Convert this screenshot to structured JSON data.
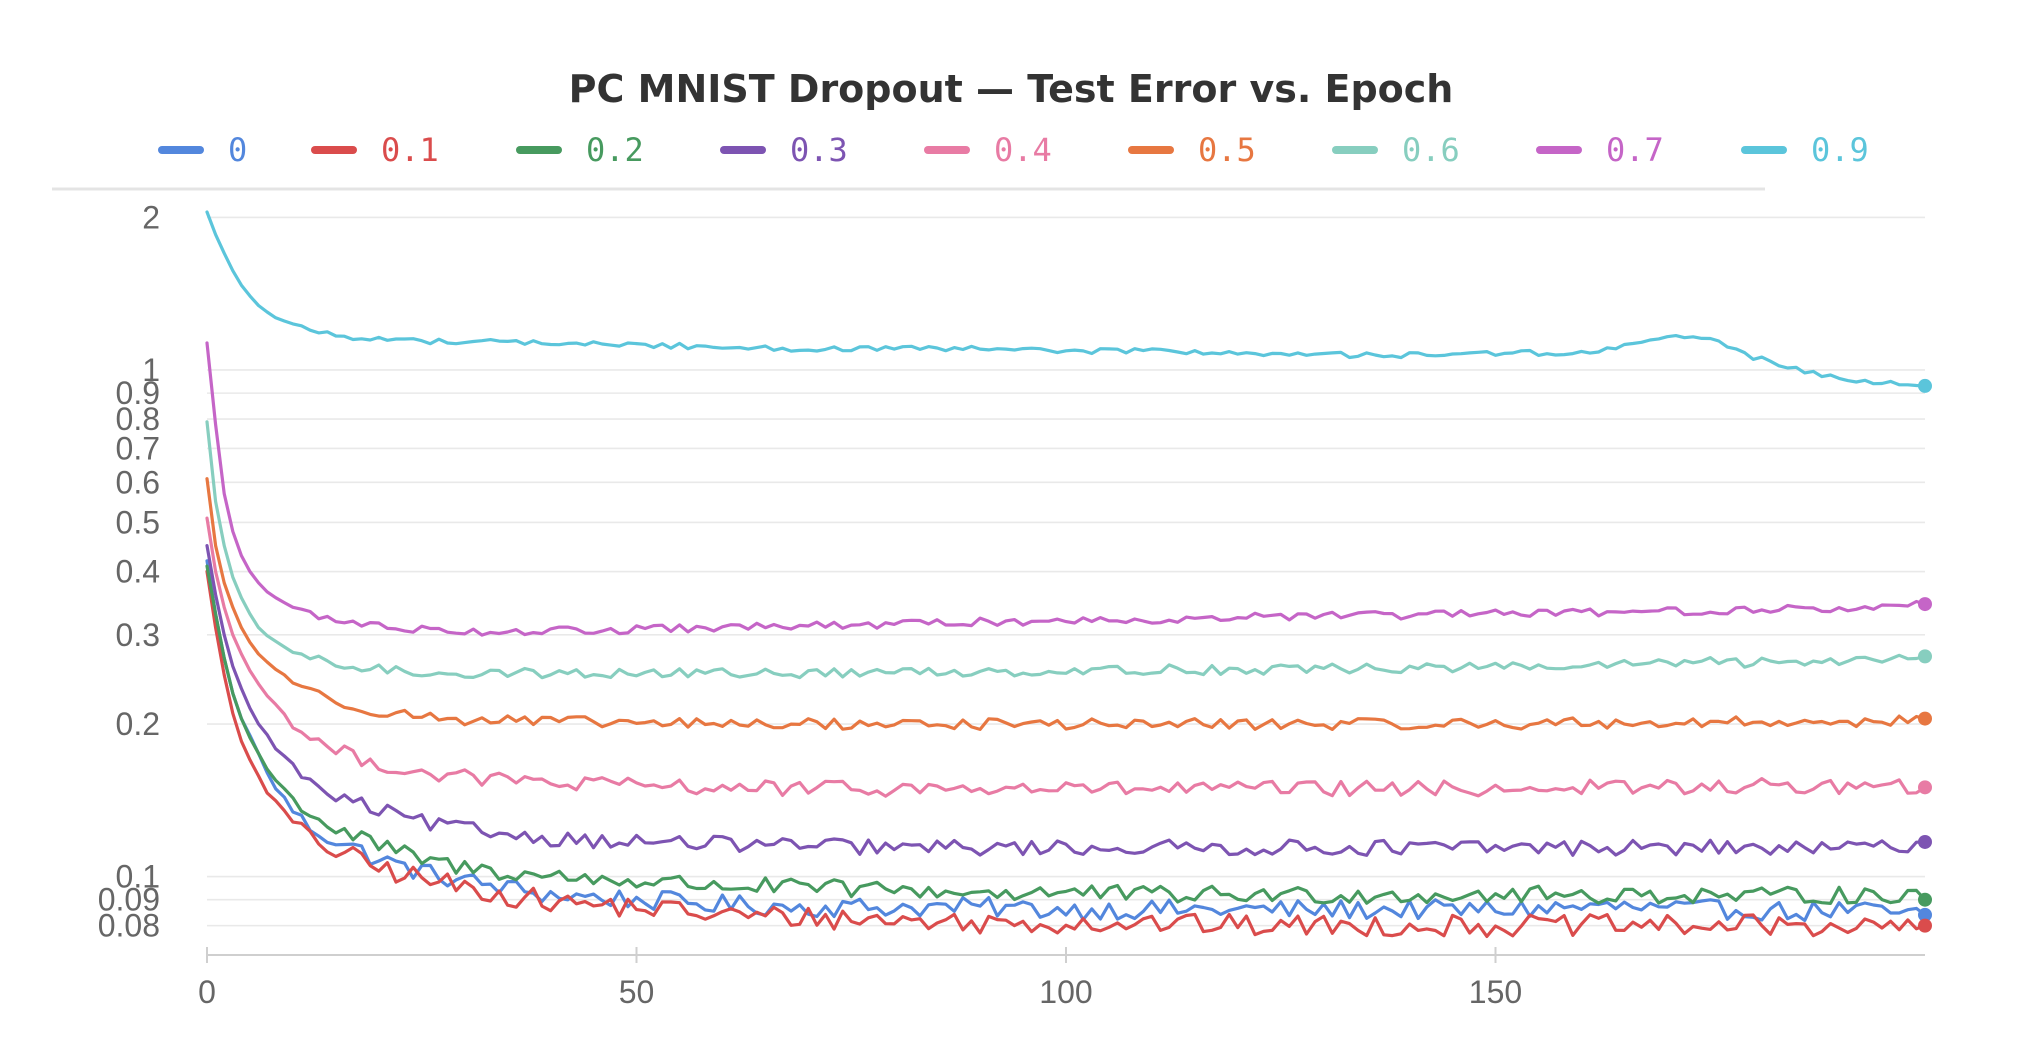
{
  "chart_data": {
    "type": "line",
    "title": "PC MNIST Dropout — Test Error vs. Epoch",
    "xlabel": "",
    "ylabel": "",
    "y_scale": "log",
    "xlim": [
      0,
      200
    ],
    "ylim": [
      0.07,
      2.05
    ],
    "x_ticks": [
      0,
      50,
      100,
      150
    ],
    "y_ticks": [
      2,
      1,
      0.9,
      0.8,
      0.7,
      0.6,
      0.5,
      0.4,
      0.3,
      0.2,
      0.1,
      0.09,
      0.08
    ],
    "grid": true,
    "legend_position": "top",
    "x": [
      0,
      1,
      2,
      3,
      4,
      5,
      6,
      7,
      8,
      10,
      12,
      15,
      20,
      25,
      30,
      40,
      50,
      60,
      70,
      80,
      90,
      100,
      110,
      120,
      130,
      140,
      150,
      160,
      165,
      170,
      175,
      180,
      185,
      190,
      195,
      200
    ],
    "series": [
      {
        "name": "0",
        "color": "#5387dd",
        "values": [
          0.42,
          0.33,
          0.27,
          0.23,
          0.205,
          0.19,
          0.175,
          0.16,
          0.15,
          0.135,
          0.125,
          0.118,
          0.108,
          0.102,
          0.098,
          0.092,
          0.09,
          0.088,
          0.087,
          0.087,
          0.087,
          0.086,
          0.086,
          0.086,
          0.086,
          0.086,
          0.086,
          0.087,
          0.087,
          0.086,
          0.086,
          0.086,
          0.085,
          0.086,
          0.085,
          0.084
        ]
      },
      {
        "name": "0.1",
        "color": "#da4c4c",
        "values": [
          0.4,
          0.31,
          0.25,
          0.21,
          0.185,
          0.17,
          0.158,
          0.147,
          0.14,
          0.128,
          0.12,
          0.112,
          0.104,
          0.099,
          0.095,
          0.089,
          0.087,
          0.084,
          0.083,
          0.082,
          0.081,
          0.081,
          0.081,
          0.08,
          0.08,
          0.08,
          0.08,
          0.08,
          0.08,
          0.08,
          0.08,
          0.08,
          0.08,
          0.08,
          0.079,
          0.08
        ]
      },
      {
        "name": "0.2",
        "color": "#479a5f",
        "values": [
          0.41,
          0.33,
          0.27,
          0.23,
          0.205,
          0.188,
          0.175,
          0.163,
          0.155,
          0.142,
          0.133,
          0.124,
          0.115,
          0.108,
          0.104,
          0.1,
          0.098,
          0.096,
          0.095,
          0.094,
          0.093,
          0.093,
          0.092,
          0.092,
          0.092,
          0.092,
          0.092,
          0.092,
          0.092,
          0.092,
          0.092,
          0.091,
          0.092,
          0.092,
          0.092,
          0.09
        ]
      },
      {
        "name": "0.3",
        "color": "#7d54b2",
        "values": [
          0.45,
          0.36,
          0.3,
          0.26,
          0.235,
          0.215,
          0.2,
          0.19,
          0.18,
          0.165,
          0.153,
          0.143,
          0.135,
          0.128,
          0.124,
          0.119,
          0.117,
          0.116,
          0.115,
          0.114,
          0.114,
          0.114,
          0.114,
          0.114,
          0.114,
          0.114,
          0.114,
          0.114,
          0.114,
          0.114,
          0.114,
          0.114,
          0.113,
          0.114,
          0.114,
          0.117
        ]
      },
      {
        "name": "0.4",
        "color": "#e87ba4",
        "values": [
          0.51,
          0.4,
          0.34,
          0.3,
          0.275,
          0.255,
          0.24,
          0.228,
          0.218,
          0.2,
          0.188,
          0.177,
          0.167,
          0.16,
          0.157,
          0.153,
          0.151,
          0.15,
          0.149,
          0.149,
          0.149,
          0.149,
          0.149,
          0.149,
          0.149,
          0.149,
          0.149,
          0.15,
          0.15,
          0.15,
          0.15,
          0.151,
          0.15,
          0.151,
          0.15,
          0.15
        ]
      },
      {
        "name": "0.5",
        "color": "#e77741",
        "values": [
          0.61,
          0.45,
          0.38,
          0.34,
          0.31,
          0.29,
          0.275,
          0.265,
          0.257,
          0.243,
          0.232,
          0.222,
          0.212,
          0.207,
          0.204,
          0.202,
          0.201,
          0.2,
          0.2,
          0.2,
          0.2,
          0.2,
          0.2,
          0.2,
          0.2,
          0.2,
          0.2,
          0.201,
          0.201,
          0.201,
          0.201,
          0.202,
          0.202,
          0.202,
          0.203,
          0.205
        ]
      },
      {
        "name": "0.6",
        "color": "#87cebf",
        "values": [
          0.79,
          0.55,
          0.45,
          0.39,
          0.355,
          0.33,
          0.31,
          0.298,
          0.29,
          0.278,
          0.27,
          0.262,
          0.256,
          0.253,
          0.252,
          0.252,
          0.252,
          0.252,
          0.252,
          0.253,
          0.254,
          0.255,
          0.256,
          0.256,
          0.257,
          0.258,
          0.259,
          0.26,
          0.262,
          0.264,
          0.265,
          0.264,
          0.265,
          0.267,
          0.27,
          0.272
        ]
      },
      {
        "name": "0.7",
        "color": "#c565c7",
        "values": [
          1.13,
          0.78,
          0.57,
          0.48,
          0.43,
          0.4,
          0.38,
          0.365,
          0.355,
          0.34,
          0.33,
          0.32,
          0.312,
          0.308,
          0.305,
          0.305,
          0.307,
          0.31,
          0.312,
          0.315,
          0.318,
          0.32,
          0.322,
          0.325,
          0.327,
          0.328,
          0.33,
          0.332,
          0.333,
          0.334,
          0.335,
          0.336,
          0.337,
          0.338,
          0.34,
          0.345
        ]
      },
      {
        "name": "0.9",
        "color": "#5bc5db",
        "values": [
          2.05,
          1.85,
          1.7,
          1.57,
          1.47,
          1.4,
          1.34,
          1.3,
          1.27,
          1.23,
          1.2,
          1.17,
          1.15,
          1.14,
          1.14,
          1.13,
          1.12,
          1.11,
          1.1,
          1.1,
          1.1,
          1.09,
          1.09,
          1.08,
          1.07,
          1.07,
          1.08,
          1.08,
          1.11,
          1.17,
          1.15,
          1.06,
          1.0,
          0.97,
          0.94,
          0.93
        ]
      }
    ]
  }
}
